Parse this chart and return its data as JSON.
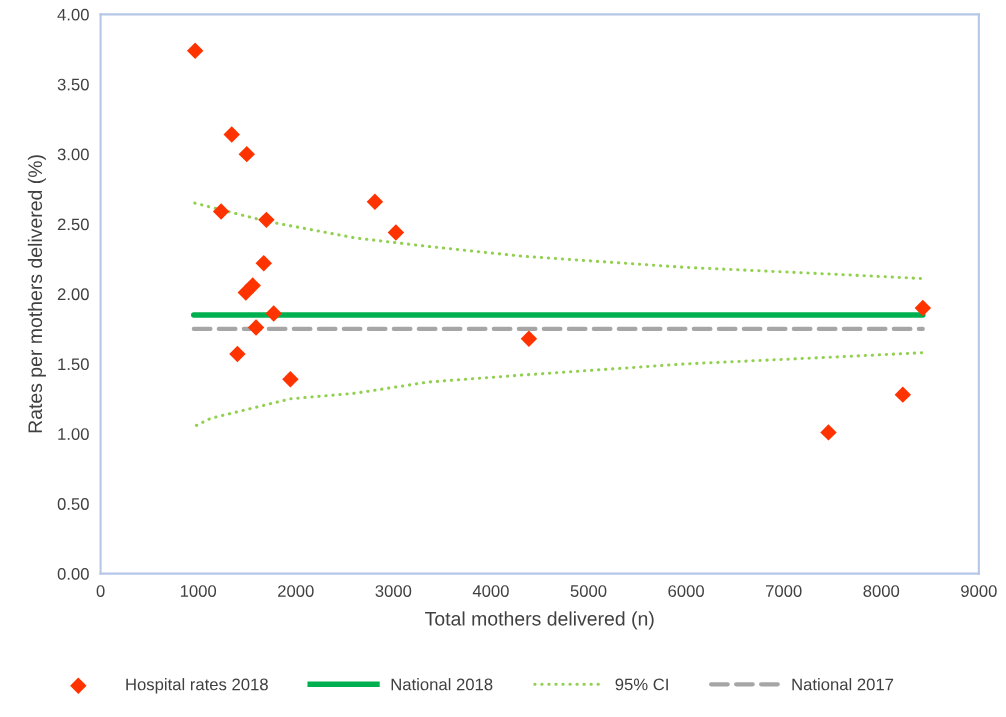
{
  "chart_data": {
    "type": "scatter",
    "xlabel": "Total mothers delivered (n)",
    "ylabel": "Rates per mothers delivered (%)",
    "xlim": [
      0,
      9000
    ],
    "xticks": [
      0,
      1000,
      2000,
      3000,
      4000,
      5000,
      6000,
      7000,
      8000,
      9000
    ],
    "ylim": [
      0,
      4
    ],
    "yticks": [
      {
        "value": 0,
        "label": "0.00"
      },
      {
        "value": 0.5,
        "label": "0.50"
      },
      {
        "value": 1,
        "label": "1.00"
      },
      {
        "value": 1.5,
        "label": "1.50"
      },
      {
        "value": 2,
        "label": "2.00"
      },
      {
        "value": 2.5,
        "label": "2.50"
      },
      {
        "value": 3,
        "label": "3.00"
      },
      {
        "value": 3.5,
        "label": "3.50"
      },
      {
        "value": 4,
        "label": "4.00"
      }
    ],
    "grid": false,
    "legend": "bottom",
    "series": [
      {
        "name": "Hospital rates 2018",
        "marker": "diamond",
        "color": "#ff3300",
        "x": [
          969,
          1344,
          1498,
          1235,
          1699,
          1672,
          1559,
          1488,
          1774,
          1593,
          1402,
          1945,
          2811,
          3026,
          4389,
          7459,
          8221,
          8426
        ],
        "values": [
          3.74,
          3.14,
          3.0,
          2.59,
          2.53,
          2.22,
          2.06,
          2.01,
          1.86,
          1.76,
          1.57,
          1.39,
          2.66,
          2.44,
          1.68,
          1.01,
          1.28,
          1.9
        ]
      },
      {
        "name": "National 2018",
        "type": "line",
        "line_style": "solid",
        "color": "#00b050",
        "x": [
          955,
          8426
        ],
        "values": [
          1.85,
          1.85
        ]
      },
      {
        "name": "95% CI",
        "type": "line",
        "line_style": "dotted",
        "color": "#92d050",
        "x": [
          965,
          1699,
          2617,
          3357,
          4319,
          5998,
          7553,
          8426
        ],
        "values": [
          2.65,
          2.52,
          2.4,
          2.34,
          2.27,
          2.19,
          2.14,
          2.11
        ]
      },
      {
        "type": "line",
        "line_style": "dotted",
        "color": "#92d050",
        "x": [
          982,
          1126,
          1945,
          2608,
          3357,
          4319,
          5998,
          7553,
          8426
        ],
        "values": [
          1.06,
          1.11,
          1.25,
          1.29,
          1.37,
          1.42,
          1.5,
          1.55,
          1.58
        ]
      },
      {
        "name": "National 2017",
        "type": "line",
        "line_style": "dashed",
        "color": "#a6a6a6",
        "x": [
          955,
          8426
        ],
        "values": [
          1.75,
          1.75
        ]
      }
    ]
  }
}
